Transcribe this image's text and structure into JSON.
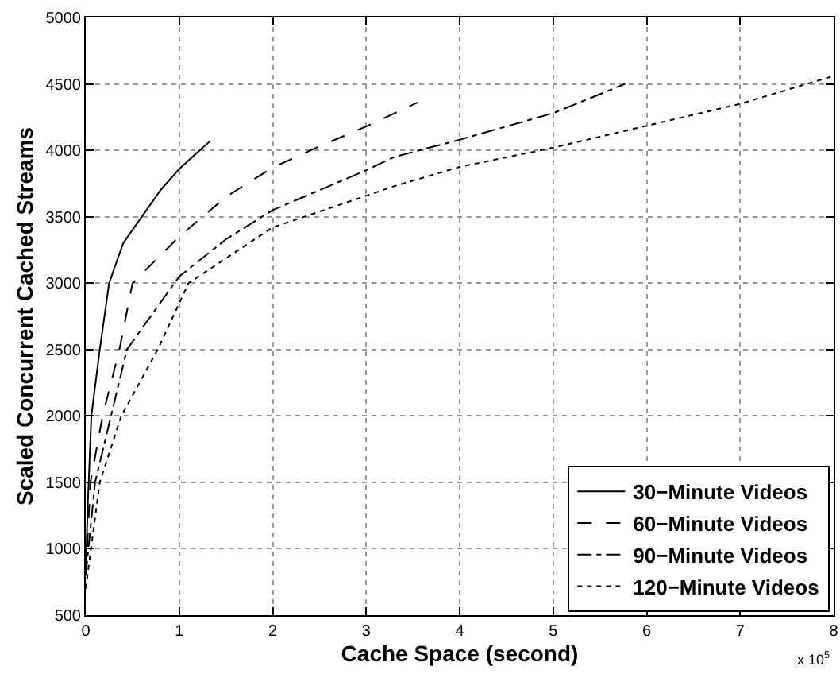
{
  "chart_data": {
    "type": "line",
    "xlabel": "Cache Space (second)",
    "ylabel": "Scaled Concurrent Cached Streams",
    "xlim": [
      0,
      8
    ],
    "xticks": [
      0,
      1,
      2,
      3,
      4,
      5,
      6,
      7,
      8
    ],
    "ylim": [
      500,
      5000
    ],
    "yticks": [
      500,
      1000,
      1500,
      2000,
      2500,
      3000,
      3500,
      4000,
      4500,
      5000
    ],
    "grid": true,
    "legend": "bottom right",
    "marker": "none",
    "annotations": [
      "x 10$^{5}$"
    ],
    "series": [
      {
        "name": "30−Minute Videos",
        "color": "#000000",
        "line_style": "solid",
        "x": [
          0,
          0.02,
          0.06,
          0.15,
          0.25,
          0.4,
          0.6,
          0.8,
          1.0,
          1.33
        ],
        "values": [
          800,
          1300,
          2000,
          2500,
          3000,
          3300,
          3500,
          3700,
          3860,
          4070
        ]
      },
      {
        "name": "60−Minute Videos",
        "color": "#000000",
        "line_style": "dashed",
        "x": [
          0,
          0.05,
          0.18,
          0.36,
          0.5,
          1,
          1.5,
          2,
          2.5,
          3,
          3.55
        ],
        "values": [
          800,
          1500,
          2000,
          2500,
          3000,
          3350,
          3650,
          3870,
          4030,
          4180,
          4360
        ]
      },
      {
        "name": "90−Minute Videos",
        "color": "#000000",
        "line_style": "dashdot",
        "x": [
          0,
          0.1,
          0.27,
          0.44,
          1,
          1.5,
          2,
          3,
          3.3,
          4,
          5,
          5.77
        ],
        "values": [
          800,
          1500,
          2000,
          2500,
          3050,
          3330,
          3550,
          3850,
          3950,
          4080,
          4280,
          4500
        ]
      },
      {
        "name": "120−Minute Videos",
        "color": "#000000",
        "line_style": "dotted",
        "x": [
          0,
          0.15,
          0.38,
          0.77,
          1.1,
          2,
          2.34,
          3.3,
          4,
          5,
          6,
          7,
          8
        ],
        "values": [
          700,
          1500,
          2000,
          2500,
          3000,
          3420,
          3500,
          3730,
          3875,
          4020,
          4185,
          4350,
          4560
        ]
      }
    ]
  }
}
